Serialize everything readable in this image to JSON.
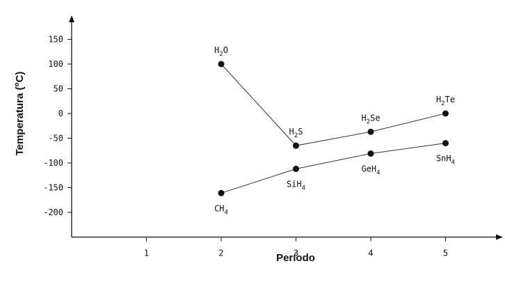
{
  "chart_data": {
    "type": "line",
    "xlabel": "Período",
    "ylabel_main": "Temperatura (",
    "ylabel_sup": "o",
    "ylabel_end": "C)",
    "x_ticks": [
      "1",
      "2",
      "3",
      "4",
      "5"
    ],
    "y_ticks": [
      "150",
      "100",
      "50",
      "0",
      "-50",
      "-100",
      "-150",
      "-200"
    ],
    "xlim": [
      0,
      5.8
    ],
    "ylim": [
      -250,
      200
    ],
    "series": [
      {
        "values": [
          {
            "x": 2,
            "y": 100,
            "label_main": "H",
            "label_sub": "2",
            "label_end": "O"
          },
          {
            "x": 3,
            "y": -65,
            "label_main": "H",
            "label_sub": "2",
            "label_end": "S"
          },
          {
            "x": 4,
            "y": -37,
            "label_main": "H",
            "label_sub": "2",
            "label_end": "Se"
          },
          {
            "x": 5,
            "y": 0,
            "label_main": "H",
            "label_sub": "2",
            "label_end": "Te"
          }
        ]
      },
      {
        "values": [
          {
            "x": 2,
            "y": -161,
            "label_main": "CH",
            "label_sub": "4",
            "label_end": ""
          },
          {
            "x": 3,
            "y": -112,
            "label_main": "SiH",
            "label_sub": "4",
            "label_end": ""
          },
          {
            "x": 4,
            "y": -81,
            "label_main": "GeH",
            "label_sub": "4",
            "label_end": ""
          },
          {
            "x": 5,
            "y": -60,
            "label_main": "SnH",
            "label_sub": "4",
            "label_end": ""
          }
        ]
      }
    ]
  }
}
